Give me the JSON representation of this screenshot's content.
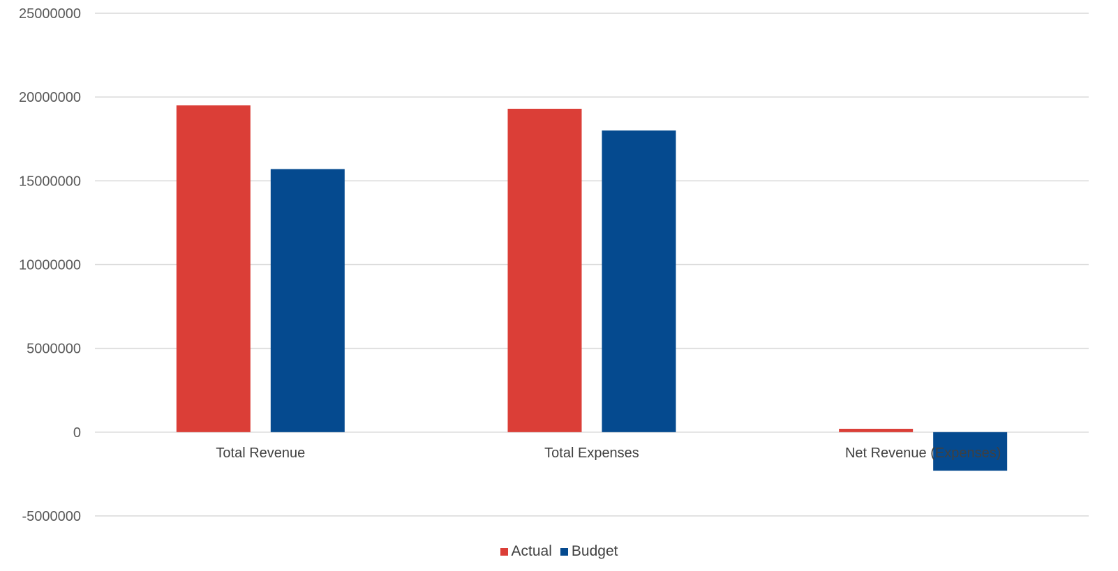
{
  "chart_data": {
    "type": "bar",
    "categories": [
      "Total Revenue",
      "Total Expenses",
      "Net Revenue (Expenses)"
    ],
    "series": [
      {
        "name": "Actual",
        "color": "#db3e37",
        "values": [
          19500000,
          19300000,
          200000
        ]
      },
      {
        "name": "Budget",
        "color": "#054a8f",
        "values": [
          15700000,
          18000000,
          -2300000
        ]
      }
    ],
    "ylim": [
      -5000000,
      25000000
    ],
    "yticks": [
      25000000,
      20000000,
      15000000,
      10000000,
      5000000,
      0,
      -5000000
    ],
    "ytick_labels": [
      "25000000",
      "20000000",
      "15000000",
      "10000000",
      "5000000",
      "0",
      "-5000000"
    ],
    "grid": true,
    "legend_position": "bottom"
  }
}
